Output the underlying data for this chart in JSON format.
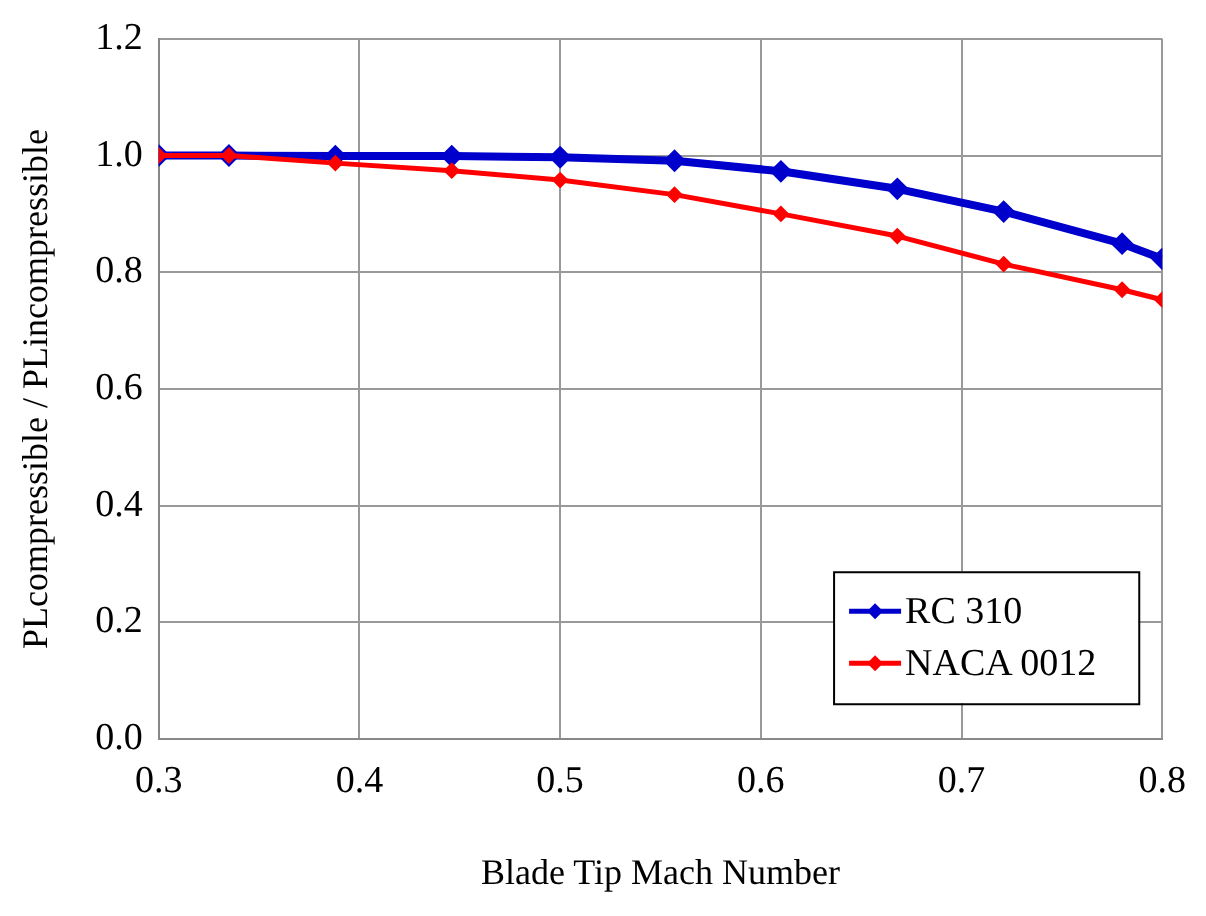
{
  "chart_data": {
    "type": "line",
    "xlabel": "Blade Tip Mach Number",
    "ylabel": "PLcompressible / PLincompressible",
    "xlim": [
      0.3,
      0.8
    ],
    "xticks": [
      0.3,
      0.4,
      0.5,
      0.6,
      0.7,
      0.8
    ],
    "ylim": [
      0,
      1.2
    ],
    "yticks": [
      {
        "value": 0,
        "label": "0.0"
      },
      {
        "value": 0.2,
        "label": "0.2"
      },
      {
        "value": 0.4,
        "label": "0.4"
      },
      {
        "value": 0.6,
        "label": "0.6"
      },
      {
        "value": 0.8,
        "label": "0.8"
      },
      {
        "value": 1,
        "label": "1.0"
      },
      {
        "value": 1.2,
        "label": "1.2"
      }
    ],
    "grid": true,
    "legend": "bottom right",
    "marker": "diamond",
    "line_style": "solid",
    "series": [
      {
        "name": "RC 310",
        "color": "#0000cc",
        "x": [
          0.3,
          0.335,
          0.388,
          0.446,
          0.5,
          0.557,
          0.61,
          0.668,
          0.721,
          0.78,
          0.8
        ],
        "values": [
          1.0,
          1.0,
          0.999,
          0.999,
          0.997,
          0.991,
          0.973,
          0.943,
          0.904,
          0.849,
          0.823
        ]
      },
      {
        "name": "NACA 0012",
        "color": "#ff0000",
        "x": [
          0.3,
          0.335,
          0.388,
          0.446,
          0.5,
          0.557,
          0.61,
          0.668,
          0.721,
          0.78,
          0.8
        ],
        "values": [
          1.0,
          1.0,
          0.987,
          0.974,
          0.958,
          0.933,
          0.9,
          0.862,
          0.814,
          0.77,
          0.753
        ]
      }
    ]
  }
}
